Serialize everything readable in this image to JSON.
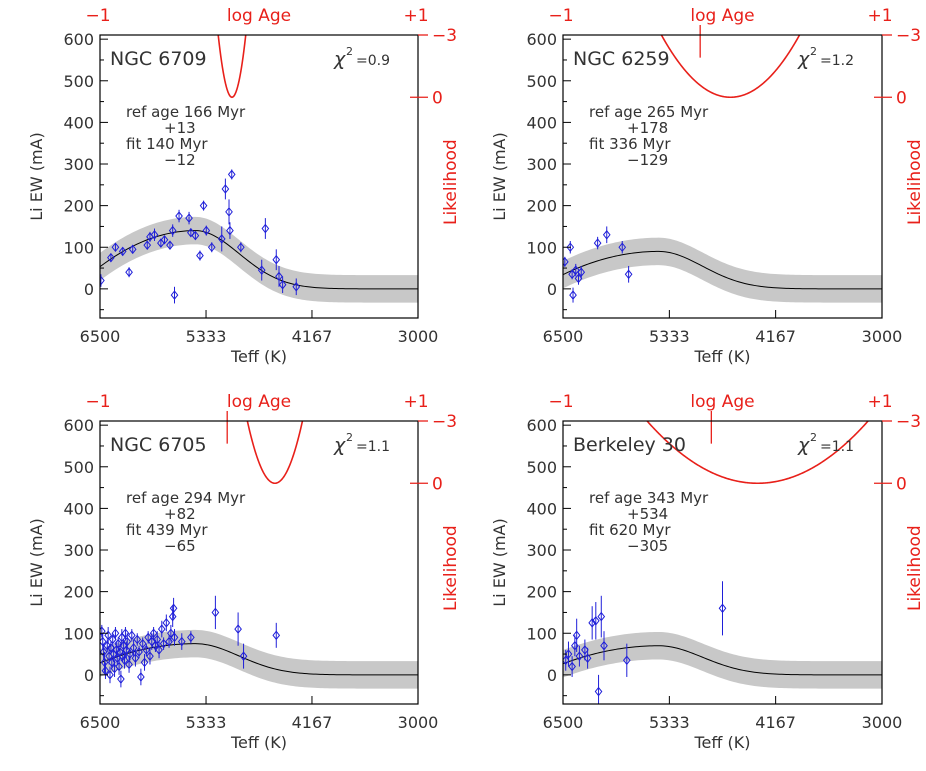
{
  "figure": {
    "top_axis": {
      "label": "log Age",
      "left_tick": "−1",
      "right_tick": "+1"
    },
    "right_axis": {
      "label": "Likelihood",
      "top_tick": "−3",
      "mid_tick": "0"
    },
    "left_axis_label": "Li EW (mA)",
    "bottom_axis_label": "Teff (K)",
    "x_ticks": [
      "6500",
      "5333",
      "4167",
      "3000"
    ],
    "y_ticks": [
      "0",
      "100",
      "200",
      "300",
      "400",
      "500",
      "600"
    ],
    "colors": {
      "data": "#1f1fd9",
      "likelihood": "#e8201a",
      "band": "#c8c8c8",
      "model": "#000000",
      "text": "#333333"
    }
  },
  "chart_data": [
    {
      "type": "scatter",
      "title": "NGC 6709",
      "chi2": "=0.9",
      "ref_line": "ref age 166  Myr",
      "ref_err": "+13",
      "fit_line": "fit 140  Myr",
      "fit_err": "−12",
      "xlabel": "Teff (K)",
      "ylabel": "Li EW (mA)",
      "xlim": [
        6500,
        3000
      ],
      "ylim": [
        -70,
        610
      ],
      "likelihood_axis": {
        "label": "Likelihood",
        "ylim": [
          -3,
          1
        ],
        "log_age_range": [
          -1,
          1
        ]
      },
      "model_peak": 140,
      "likelihood_curve": {
        "center": -0.17,
        "half_width": 0.05,
        "floor": 0.0
      },
      "ref_marker_log_age": null,
      "points": [
        {
          "teff": 6490,
          "ew": 20,
          "err": 15
        },
        {
          "teff": 6380,
          "ew": 75,
          "err": 10
        },
        {
          "teff": 6330,
          "ew": 100,
          "err": 10
        },
        {
          "teff": 6250,
          "ew": 90,
          "err": 10
        },
        {
          "teff": 6180,
          "ew": 40,
          "err": 12
        },
        {
          "teff": 6140,
          "ew": 95,
          "err": 10
        },
        {
          "teff": 5980,
          "ew": 105,
          "err": 10
        },
        {
          "teff": 5950,
          "ew": 125,
          "err": 12
        },
        {
          "teff": 5900,
          "ew": 130,
          "err": 15
        },
        {
          "teff": 5830,
          "ew": 110,
          "err": 10
        },
        {
          "teff": 5790,
          "ew": 118,
          "err": 10
        },
        {
          "teff": 5730,
          "ew": 105,
          "err": 10
        },
        {
          "teff": 5700,
          "ew": 140,
          "err": 15
        },
        {
          "teff": 5680,
          "ew": -15,
          "err": 20
        },
        {
          "teff": 5630,
          "ew": 175,
          "err": 15
        },
        {
          "teff": 5520,
          "ew": 170,
          "err": 15
        },
        {
          "teff": 5500,
          "ew": 135,
          "err": 10
        },
        {
          "teff": 5450,
          "ew": 128,
          "err": 10
        },
        {
          "teff": 5400,
          "ew": 80,
          "err": 12
        },
        {
          "teff": 5360,
          "ew": 200,
          "err": 12
        },
        {
          "teff": 5330,
          "ew": 140,
          "err": 12
        },
        {
          "teff": 5270,
          "ew": 100,
          "err": 12
        },
        {
          "teff": 5160,
          "ew": 120,
          "err": 30
        },
        {
          "teff": 5120,
          "ew": 240,
          "err": 25
        },
        {
          "teff": 5080,
          "ew": 185,
          "err": 30
        },
        {
          "teff": 5070,
          "ew": 140,
          "err": 20
        },
        {
          "teff": 5050,
          "ew": 275,
          "err": 12
        },
        {
          "teff": 4950,
          "ew": 100,
          "err": 12
        },
        {
          "teff": 4720,
          "ew": 45,
          "err": 25
        },
        {
          "teff": 4680,
          "ew": 145,
          "err": 25
        },
        {
          "teff": 4560,
          "ew": 70,
          "err": 25
        },
        {
          "teff": 4530,
          "ew": 30,
          "err": 25
        },
        {
          "teff": 4490,
          "ew": 10,
          "err": 20
        },
        {
          "teff": 4340,
          "ew": 5,
          "err": 20
        }
      ]
    },
    {
      "type": "scatter",
      "title": "NGC 6259",
      "chi2": "=1.2",
      "ref_line": "ref age 265  Myr",
      "ref_err": "+178",
      "fit_line": "fit 336  Myr",
      "fit_err": "−129",
      "xlabel": "Teff (K)",
      "ylabel": "Li EW (mA)",
      "xlim": [
        6500,
        3000
      ],
      "ylim": [
        -70,
        610
      ],
      "likelihood_axis": {
        "label": "Likelihood",
        "ylim": [
          -3,
          1
        ],
        "log_age_range": [
          -1,
          1
        ]
      },
      "model_peak": 90,
      "likelihood_curve": {
        "center": 0.05,
        "half_width": 0.25,
        "floor": 0.0
      },
      "ref_marker_log_age": -0.14,
      "points": [
        {
          "teff": 6480,
          "ew": 65,
          "err": 12
        },
        {
          "teff": 6420,
          "ew": 100,
          "err": 15
        },
        {
          "teff": 6400,
          "ew": 35,
          "err": 12
        },
        {
          "teff": 6390,
          "ew": -15,
          "err": 18
        },
        {
          "teff": 6360,
          "ew": 45,
          "err": 15
        },
        {
          "teff": 6330,
          "ew": 25,
          "err": 15
        },
        {
          "teff": 6300,
          "ew": 40,
          "err": 15
        },
        {
          "teff": 6120,
          "ew": 110,
          "err": 15
        },
        {
          "teff": 6020,
          "ew": 130,
          "err": 20
        },
        {
          "teff": 5850,
          "ew": 100,
          "err": 15
        },
        {
          "teff": 5780,
          "ew": 35,
          "err": 20
        }
      ]
    },
    {
      "type": "scatter",
      "title": "NGC 6705",
      "chi2": "=1.1",
      "ref_line": "ref age 294  Myr",
      "ref_err": "+82",
      "fit_line": "fit 439  Myr",
      "fit_err": "−65",
      "xlabel": "Teff (K)",
      "ylabel": "Li EW (mA)",
      "xlim": [
        6500,
        3000
      ],
      "ylim": [
        -70,
        610
      ],
      "likelihood_axis": {
        "label": "Likelihood",
        "ylim": [
          -3,
          1
        ],
        "log_age_range": [
          -1,
          1
        ]
      },
      "model_peak": 75,
      "likelihood_curve": {
        "center": 0.1,
        "half_width": 0.1,
        "floor": 0.0
      },
      "ref_marker_log_age": -0.2,
      "points": [
        {
          "teff": 6480,
          "ew": 105,
          "err": 15
        },
        {
          "teff": 6470,
          "ew": 80,
          "err": 20
        },
        {
          "teff": 6460,
          "ew": 55,
          "err": 20
        },
        {
          "teff": 6450,
          "ew": 30,
          "err": 25
        },
        {
          "teff": 6440,
          "ew": 10,
          "err": 20
        },
        {
          "teff": 6420,
          "ew": 70,
          "err": 15
        },
        {
          "teff": 6410,
          "ew": 95,
          "err": 20
        },
        {
          "teff": 6400,
          "ew": 45,
          "err": 20
        },
        {
          "teff": 6390,
          "ew": 0,
          "err": 20
        },
        {
          "teff": 6380,
          "ew": 65,
          "err": 15
        },
        {
          "teff": 6370,
          "ew": 30,
          "err": 15
        },
        {
          "teff": 6360,
          "ew": 85,
          "err": 15
        },
        {
          "teff": 6350,
          "ew": 50,
          "err": 20
        },
        {
          "teff": 6340,
          "ew": 15,
          "err": 20
        },
        {
          "teff": 6330,
          "ew": 100,
          "err": 15
        },
        {
          "teff": 6320,
          "ew": 60,
          "err": 20
        },
        {
          "teff": 6310,
          "ew": 40,
          "err": 15
        },
        {
          "teff": 6300,
          "ew": 75,
          "err": 15
        },
        {
          "teff": 6290,
          "ew": 20,
          "err": 20
        },
        {
          "teff": 6280,
          "ew": 55,
          "err": 20
        },
        {
          "teff": 6270,
          "ew": -10,
          "err": 20
        },
        {
          "teff": 6260,
          "ew": 90,
          "err": 20
        },
        {
          "teff": 6250,
          "ew": 45,
          "err": 15
        },
        {
          "teff": 6240,
          "ew": 70,
          "err": 15
        },
        {
          "teff": 6230,
          "ew": 35,
          "err": 20
        },
        {
          "teff": 6220,
          "ew": 100,
          "err": 15
        },
        {
          "teff": 6210,
          "ew": 60,
          "err": 20
        },
        {
          "teff": 6200,
          "ew": 80,
          "err": 20
        },
        {
          "teff": 6180,
          "ew": 25,
          "err": 20
        },
        {
          "teff": 6170,
          "ew": 50,
          "err": 15
        },
        {
          "teff": 6150,
          "ew": 95,
          "err": 15
        },
        {
          "teff": 6130,
          "ew": 65,
          "err": 20
        },
        {
          "teff": 6110,
          "ew": 40,
          "err": 20
        },
        {
          "teff": 6090,
          "ew": 85,
          "err": 15
        },
        {
          "teff": 6070,
          "ew": 55,
          "err": 15
        },
        {
          "teff": 6050,
          "ew": -5,
          "err": 20
        },
        {
          "teff": 6030,
          "ew": 75,
          "err": 15
        },
        {
          "teff": 6010,
          "ew": 30,
          "err": 20
        },
        {
          "teff": 5990,
          "ew": 60,
          "err": 15
        },
        {
          "teff": 5970,
          "ew": 90,
          "err": 15
        },
        {
          "teff": 5950,
          "ew": 45,
          "err": 20
        },
        {
          "teff": 5930,
          "ew": 80,
          "err": 20
        },
        {
          "teff": 5910,
          "ew": 100,
          "err": 15
        },
        {
          "teff": 5890,
          "ew": 70,
          "err": 15
        },
        {
          "teff": 5870,
          "ew": 85,
          "err": 20
        },
        {
          "teff": 5850,
          "ew": 60,
          "err": 20
        },
        {
          "teff": 5820,
          "ew": 110,
          "err": 20
        },
        {
          "teff": 5800,
          "ew": 75,
          "err": 15
        },
        {
          "teff": 5770,
          "ew": 125,
          "err": 20
        },
        {
          "teff": 5740,
          "ew": 80,
          "err": 15
        },
        {
          "teff": 5720,
          "ew": 100,
          "err": 20
        },
        {
          "teff": 5700,
          "ew": 140,
          "err": 25
        },
        {
          "teff": 5690,
          "ew": 160,
          "err": 25
        },
        {
          "teff": 5680,
          "ew": 90,
          "err": 20
        },
        {
          "teff": 5600,
          "ew": 80,
          "err": 20
        },
        {
          "teff": 5500,
          "ew": 90,
          "err": 15
        },
        {
          "teff": 5230,
          "ew": 150,
          "err": 40
        },
        {
          "teff": 4980,
          "ew": 110,
          "err": 40
        },
        {
          "teff": 4920,
          "ew": 45,
          "err": 30
        },
        {
          "teff": 4560,
          "ew": 95,
          "err": 30
        }
      ]
    },
    {
      "type": "scatter",
      "title": "Berkeley 30",
      "chi2": "=1.1",
      "ref_line": "ref age 343  Myr",
      "ref_err": "+534",
      "fit_line": "fit 620  Myr",
      "fit_err": "−305",
      "xlabel": "Teff (K)",
      "ylabel": "Li EW (mA)",
      "xlim": [
        6500,
        3000
      ],
      "ylim": [
        -70,
        610
      ],
      "likelihood_axis": {
        "label": "Likelihood",
        "ylim": [
          -3,
          1
        ],
        "log_age_range": [
          -1,
          1
        ]
      },
      "model_peak": 70,
      "likelihood_curve": {
        "center": 0.22,
        "half_width": 0.4,
        "floor": 0.0
      },
      "ref_marker_log_age": -0.07,
      "points": [
        {
          "teff": 6470,
          "ew": 35,
          "err": 25
        },
        {
          "teff": 6440,
          "ew": 50,
          "err": 30
        },
        {
          "teff": 6400,
          "ew": 20,
          "err": 25
        },
        {
          "teff": 6370,
          "ew": 70,
          "err": 25
        },
        {
          "teff": 6350,
          "ew": 95,
          "err": 40
        },
        {
          "teff": 6320,
          "ew": 45,
          "err": 25
        },
        {
          "teff": 6260,
          "ew": 60,
          "err": 25
        },
        {
          "teff": 6230,
          "ew": 40,
          "err": 25
        },
        {
          "teff": 6180,
          "ew": 125,
          "err": 40
        },
        {
          "teff": 6140,
          "ew": 130,
          "err": 45
        },
        {
          "teff": 6110,
          "ew": -40,
          "err": 40
        },
        {
          "teff": 6080,
          "ew": 140,
          "err": 50
        },
        {
          "teff": 6050,
          "ew": 70,
          "err": 35
        },
        {
          "teff": 5800,
          "ew": 35,
          "err": 40
        },
        {
          "teff": 4750,
          "ew": 160,
          "err": 65
        }
      ]
    }
  ]
}
